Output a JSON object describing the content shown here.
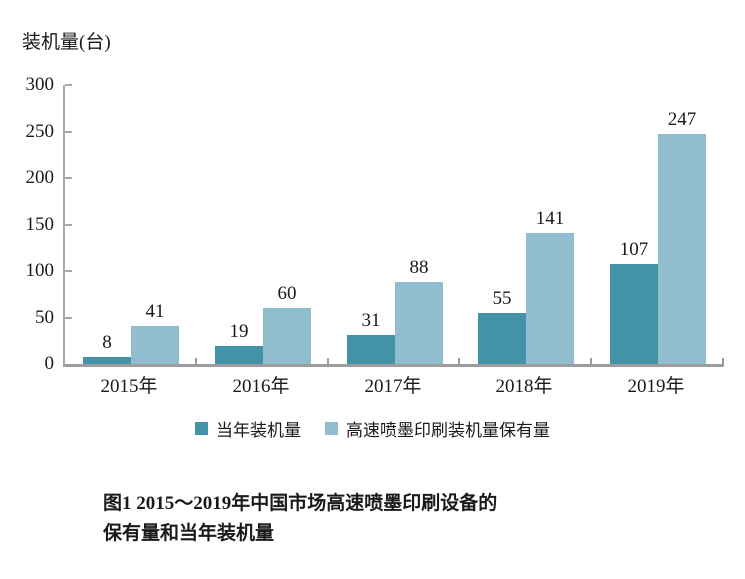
{
  "chart_data": {
    "type": "bar",
    "y_axis_title": "装机量(台)",
    "categories": [
      "2015年",
      "2016年",
      "2017年",
      "2018年",
      "2019年"
    ],
    "series": [
      {
        "name": "当年装机量",
        "color": "#4292a8",
        "values": [
          8,
          19,
          31,
          55,
          107
        ]
      },
      {
        "name": "高速喷墨印刷装机量保有量",
        "color": "#91becf",
        "values": [
          41,
          60,
          88,
          141,
          247
        ]
      }
    ],
    "ylim": [
      0,
      300
    ],
    "y_ticks": [
      0,
      50,
      100,
      150,
      200,
      250,
      300
    ],
    "grid": false,
    "legend_position": "bottom",
    "data_labels": true,
    "axis_color": "#9c9c9c"
  },
  "caption": {
    "line1": "图1 2015～2019年中国市场高速喷墨印刷设备的",
    "line2": "保有量和当年装机量"
  }
}
